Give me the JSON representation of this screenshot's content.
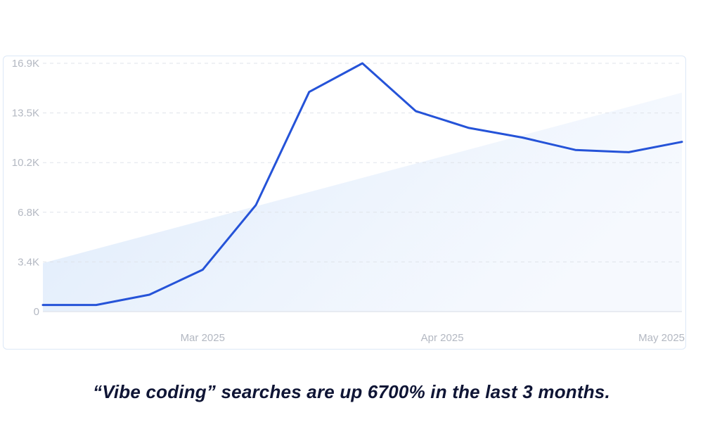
{
  "chart_data": {
    "type": "line",
    "title": "",
    "xlabel": "",
    "ylabel": "",
    "ylim": [
      0,
      16900
    ],
    "y_ticks": [
      {
        "value": 0,
        "label": "0"
      },
      {
        "value": 3380,
        "label": "3.4K"
      },
      {
        "value": 6760,
        "label": "6.8K"
      },
      {
        "value": 10140,
        "label": "10.2K"
      },
      {
        "value": 13520,
        "label": "13.5K"
      },
      {
        "value": 16900,
        "label": "16.9K"
      }
    ],
    "x_ticks": [
      {
        "index": 3,
        "label": "Mar 2025"
      },
      {
        "index": 7.5,
        "label": "Apr 2025"
      },
      {
        "index": 12,
        "label": "May 2025"
      }
    ],
    "grid": true,
    "series": [
      {
        "color": "#2553d8",
        "values": [
          450,
          450,
          1150,
          2850,
          7250,
          14950,
          16900,
          13650,
          12500,
          11850,
          11000,
          10850,
          11550
        ]
      }
    ],
    "trend_area": {
      "color": "#dbe9fb",
      "start": 3300,
      "end": 14900
    }
  },
  "caption": "“Vibe coding” searches are up 6700% in the last 3 months."
}
